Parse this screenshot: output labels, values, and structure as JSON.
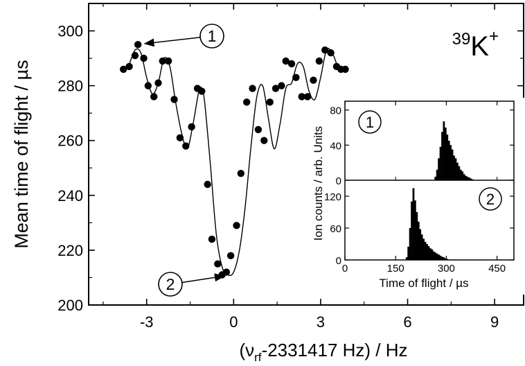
{
  "chart_data": [
    {
      "type": "scatter",
      "title": "",
      "xlabel": "(ν",
      "xlabel_sub": "rf",
      "xlabel_rest": "-2331417 Hz) / Hz",
      "ylabel": "Mean time of flight / µs",
      "xlim": [
        -5,
        10
      ],
      "ylim": [
        200,
        310
      ],
      "xticks": [
        -3,
        0,
        3,
        6,
        9
      ],
      "yticks": [
        200,
        220,
        240,
        260,
        280,
        300
      ],
      "annotation": {
        "prefix": "39",
        "text": "K",
        "suffix": "+"
      },
      "callouts": [
        {
          "label": "1",
          "x": -3.35,
          "y": 295
        },
        {
          "label": "2",
          "x": -0.05,
          "y": 211
        }
      ],
      "series": [
        {
          "kind": "points",
          "x": [
            -3.8,
            -3.6,
            -3.4,
            -3.3,
            -3.1,
            -2.95,
            -2.75,
            -2.6,
            -2.45,
            -2.25,
            -2.05,
            -1.85,
            -1.65,
            -1.45,
            -1.25,
            -1.1,
            -0.9,
            -0.75,
            -0.55,
            -0.4,
            -0.25,
            -0.1,
            0.1,
            0.25,
            0.45,
            0.65,
            0.85,
            1.05,
            1.25,
            1.45,
            1.65,
            1.8,
            2.0,
            2.15,
            2.35,
            2.55,
            2.75,
            2.95,
            3.15,
            3.35,
            3.55,
            3.7,
            3.85
          ],
          "y": [
            286,
            287,
            291,
            295,
            290,
            280,
            276,
            281,
            289,
            289,
            275,
            261,
            258,
            265,
            279,
            278,
            244,
            224,
            215,
            211,
            212,
            218,
            229,
            248,
            274,
            279,
            264,
            260,
            274,
            279,
            280,
            289,
            288,
            283,
            276,
            276,
            282,
            289,
            293,
            292,
            287,
            286,
            286
          ]
        },
        {
          "kind": "fit",
          "x": [
            -3.8,
            -3.6,
            -3.4,
            -3.2,
            -3.0,
            -2.8,
            -2.6,
            -2.4,
            -2.2,
            -2.0,
            -1.8,
            -1.6,
            -1.4,
            -1.2,
            -1.1,
            -1.0,
            -0.8,
            -0.6,
            -0.4,
            -0.2,
            0.0,
            0.2,
            0.4,
            0.6,
            0.8,
            1.0,
            1.2,
            1.4,
            1.6,
            1.8,
            2.0,
            2.2,
            2.4,
            2.6,
            2.8,
            3.0,
            3.2,
            3.4,
            3.6,
            3.85
          ],
          "y": [
            285,
            288,
            293,
            292,
            283,
            277,
            281,
            290,
            287,
            274,
            263,
            257,
            266,
            278,
            279,
            274,
            251,
            226,
            214,
            211,
            212,
            220,
            236,
            258,
            276,
            280,
            268,
            257,
            266,
            279,
            281,
            288,
            287,
            278,
            275,
            283,
            293,
            292,
            287,
            285
          ]
        }
      ]
    },
    {
      "type": "bar",
      "title": "",
      "xlabel": "Time of flight / µs",
      "ylabel": "Ion counts / arb. Units",
      "xlim": [
        0,
        500
      ],
      "xticks": [
        0,
        150,
        300,
        450
      ],
      "panels": [
        {
          "label": "1",
          "ylim": [
            0,
            90
          ],
          "yticks": [
            0,
            40,
            80
          ],
          "x": [
            265,
            270,
            275,
            280,
            285,
            290,
            295,
            300,
            305,
            310,
            315,
            320,
            325,
            330,
            335,
            340,
            345,
            350,
            355,
            360,
            365,
            370,
            375
          ],
          "values": [
            4,
            12,
            25,
            38,
            55,
            67,
            60,
            52,
            45,
            40,
            35,
            28,
            25,
            20,
            16,
            12,
            10,
            7,
            5,
            4,
            3,
            2,
            1
          ]
        },
        {
          "label": "2",
          "ylim": [
            0,
            150
          ],
          "yticks": [
            0,
            60,
            120
          ],
          "x": [
            180,
            185,
            190,
            195,
            200,
            205,
            210,
            215,
            220,
            225,
            230,
            235,
            240,
            245,
            250,
            255,
            260,
            265,
            270,
            275,
            280,
            285,
            290,
            295,
            300
          ],
          "values": [
            5,
            25,
            60,
            110,
            135,
            112,
            90,
            72,
            58,
            48,
            40,
            34,
            30,
            26,
            22,
            20,
            16,
            14,
            12,
            10,
            8,
            6,
            5,
            3,
            2
          ]
        }
      ]
    }
  ]
}
